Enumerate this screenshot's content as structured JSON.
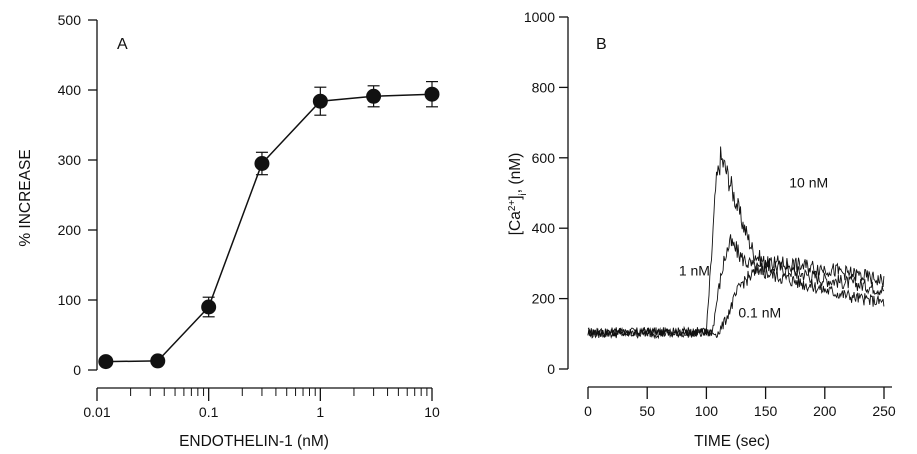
{
  "chart_data": [
    {
      "type": "scatter",
      "panel_label": "A",
      "xlabel": "ENDOTHELIN-1 (nM)",
      "ylabel": "% INCREASE",
      "xscale": "log",
      "xlim": [
        0.01,
        10
      ],
      "ylim": [
        0,
        500
      ],
      "x_ticks": [
        0.01,
        0.1,
        1,
        10
      ],
      "x_tick_labels": [
        "0.01",
        "0.1",
        "1",
        "10"
      ],
      "y_ticks": [
        0,
        100,
        200,
        300,
        400,
        500
      ],
      "y_tick_labels": [
        "0",
        "100",
        "200",
        "300",
        "400",
        "500"
      ],
      "grid": false,
      "series": [
        {
          "x": [
            0.012,
            0.035,
            0.1,
            0.3,
            1,
            3,
            10
          ],
          "y": [
            12,
            13,
            90,
            295,
            384,
            391,
            394
          ],
          "yerr": [
            4,
            4,
            14,
            16,
            20,
            15,
            18
          ],
          "marker": "filled-circle",
          "connected": true
        }
      ]
    },
    {
      "type": "line",
      "panel_label": "B",
      "xlabel": "TIME (sec)",
      "ylabel": "[Ca2+]i, (nM)",
      "xlim": [
        0,
        250
      ],
      "ylim": [
        0,
        1000
      ],
      "x_ticks": [
        0,
        50,
        100,
        150,
        200,
        250
      ],
      "x_tick_labels": [
        "0",
        "50",
        "100",
        "150",
        "200",
        "250"
      ],
      "y_ticks": [
        0,
        200,
        400,
        600,
        800,
        1000
      ],
      "y_tick_labels": [
        "0",
        "200",
        "400",
        "600",
        "800",
        "1000"
      ],
      "grid": false,
      "series": [
        {
          "name": "10 nM",
          "x": [
            0,
            100,
            104,
            108,
            112,
            116,
            120,
            130,
            140,
            150,
            170,
            200,
            230,
            250
          ],
          "y": [
            105,
            106,
            300,
            520,
            600,
            570,
            530,
            420,
            330,
            300,
            280,
            255,
            240,
            225
          ]
        },
        {
          "name": "1 nM",
          "x": [
            0,
            105,
            110,
            115,
            120,
            125,
            130,
            140,
            150,
            170,
            200,
            230,
            250
          ],
          "y": [
            105,
            106,
            220,
            310,
            360,
            340,
            315,
            290,
            275,
            255,
            225,
            200,
            190
          ]
        },
        {
          "name": "0.1 nM",
          "x": [
            0,
            110,
            115,
            120,
            125,
            130,
            140,
            150,
            160,
            175,
            200,
            230,
            250
          ],
          "y": [
            100,
            102,
            130,
            170,
            210,
            245,
            270,
            295,
            300,
            295,
            285,
            265,
            250
          ]
        }
      ]
    }
  ]
}
